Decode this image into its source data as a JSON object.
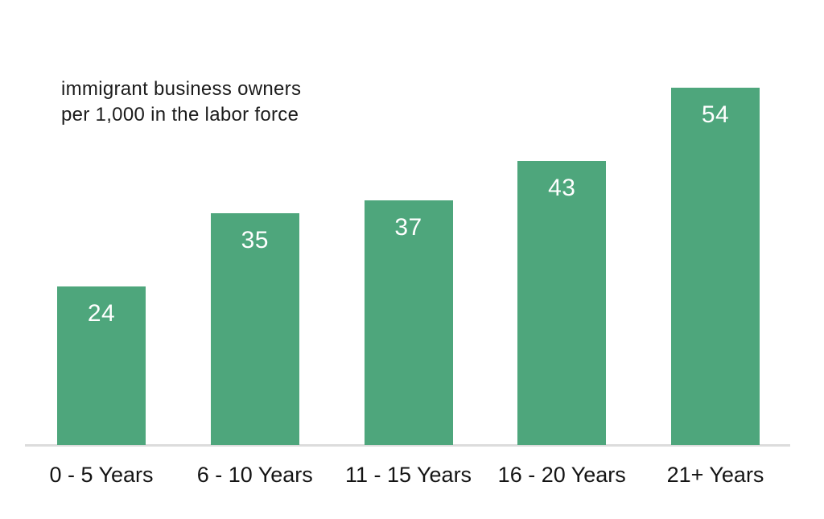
{
  "chart_data": {
    "type": "bar",
    "title": "immigrant business owners\nper 1,000 in the labor force",
    "categories": [
      "0 - 5 Years",
      "6 - 10 Years",
      "11 - 15 Years",
      "16 - 20 Years",
      "21+ Years"
    ],
    "values": [
      24,
      35,
      37,
      43,
      54
    ],
    "xlabel": "",
    "ylabel": "",
    "ylim": [
      0,
      60
    ],
    "gridlines": false,
    "legend": false,
    "value_labels_position": "inside-top",
    "bar_color": "#4EA67C",
    "value_label_color": "#FFFFFF",
    "axis_line_color": "#DCDCDC",
    "text_color": "#1C1C1C"
  }
}
